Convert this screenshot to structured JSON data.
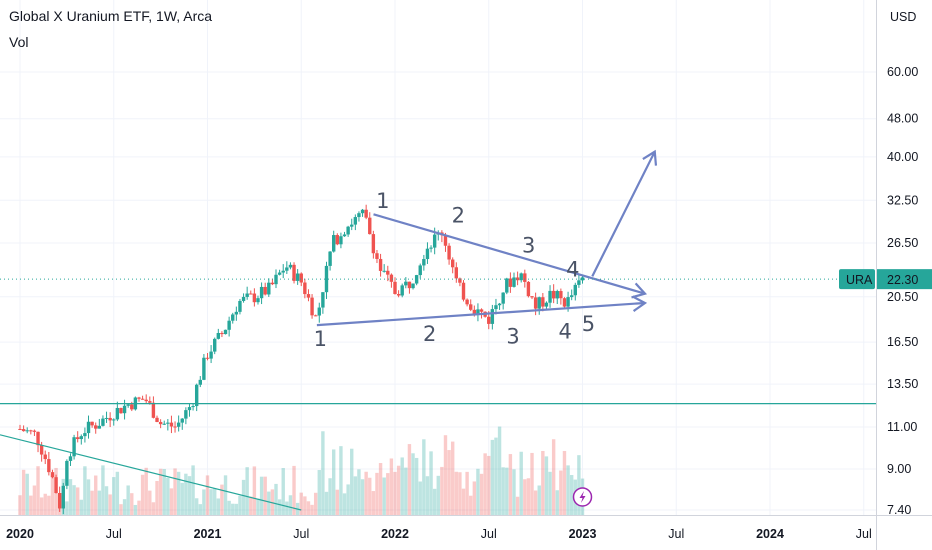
{
  "header": {
    "title": "Global X Uranium ETF, 1W, Arca",
    "volume_label": "Vol"
  },
  "price_scale": {
    "currency": "USD"
  },
  "price_tag": {
    "symbol": "URA",
    "price": "22.30",
    "color": "#26a69a"
  },
  "colors": {
    "up": "#26a69a",
    "down": "#ef5350",
    "trendline": "#6f82c5",
    "support": "#26a69a"
  },
  "chart_data": {
    "type": "candlestick",
    "title": "Global X Uranium ETF, 1W, Arca",
    "xlabel": "",
    "ylabel": "USD",
    "y_scale": "log",
    "y_ticks": [
      "60.00",
      "48.00",
      "40.00",
      "32.50",
      "26.50",
      "20.50",
      "16.50",
      "13.50",
      "11.00",
      "9.00",
      "7.40"
    ],
    "x_ticks": [
      "2020",
      "Jul",
      "2021",
      "Jul",
      "2022",
      "Jul",
      "2023",
      "Jul",
      "2024",
      "Jul"
    ],
    "ylim": [
      7.3,
      80
    ],
    "last_price": 22.3,
    "close_series": [
      {
        "x": "2020-01",
        "y": 10.9
      },
      {
        "x": "2020-02",
        "y": 10.6
      },
      {
        "x": "2020-03",
        "y": 8.8
      },
      {
        "x": "2020-03-20",
        "y": 7.4
      },
      {
        "x": "2020-04",
        "y": 9.6
      },
      {
        "x": "2020-05",
        "y": 10.8
      },
      {
        "x": "2020-06",
        "y": 11.2
      },
      {
        "x": "2020-07",
        "y": 11.8
      },
      {
        "x": "2020-08",
        "y": 12.3
      },
      {
        "x": "2020-09",
        "y": 12.6
      },
      {
        "x": "2020-10",
        "y": 11.2
      },
      {
        "x": "2020-11",
        "y": 11.0
      },
      {
        "x": "2020-12",
        "y": 12.3
      },
      {
        "x": "2021-01",
        "y": 15.6
      },
      {
        "x": "2021-02",
        "y": 17.3
      },
      {
        "x": "2021-03",
        "y": 20.0
      },
      {
        "x": "2021-04",
        "y": 20.5
      },
      {
        "x": "2021-05",
        "y": 21.3
      },
      {
        "x": "2021-06",
        "y": 23.8
      },
      {
        "x": "2021-07",
        "y": 22.0
      },
      {
        "x": "2021-08",
        "y": 18.3
      },
      {
        "x": "2021-09",
        "y": 26.5
      },
      {
        "x": "2021-10",
        "y": 29.0
      },
      {
        "x": "2021-11",
        "y": 30.4
      },
      {
        "x": "2021-12",
        "y": 23.5
      },
      {
        "x": "2022-01",
        "y": 21.0
      },
      {
        "x": "2022-02",
        "y": 22.0
      },
      {
        "x": "2022-03",
        "y": 26.0
      },
      {
        "x": "2022-04",
        "y": 28.0
      },
      {
        "x": "2022-05",
        "y": 21.5
      },
      {
        "x": "2022-06",
        "y": 19.5
      },
      {
        "x": "2022-07",
        "y": 18.4
      },
      {
        "x": "2022-08",
        "y": 21.5
      },
      {
        "x": "2022-09",
        "y": 23.0
      },
      {
        "x": "2022-10",
        "y": 19.5
      },
      {
        "x": "2022-11",
        "y": 20.8
      },
      {
        "x": "2022-12",
        "y": 19.9
      },
      {
        "x": "2023-01",
        "y": 22.3
      }
    ],
    "annotations": {
      "pattern_upper_labels": [
        "1",
        "2",
        "3",
        "4"
      ],
      "pattern_lower_labels": [
        "1",
        "2",
        "3",
        "4",
        "5"
      ],
      "support_level": 12.3
    }
  }
}
